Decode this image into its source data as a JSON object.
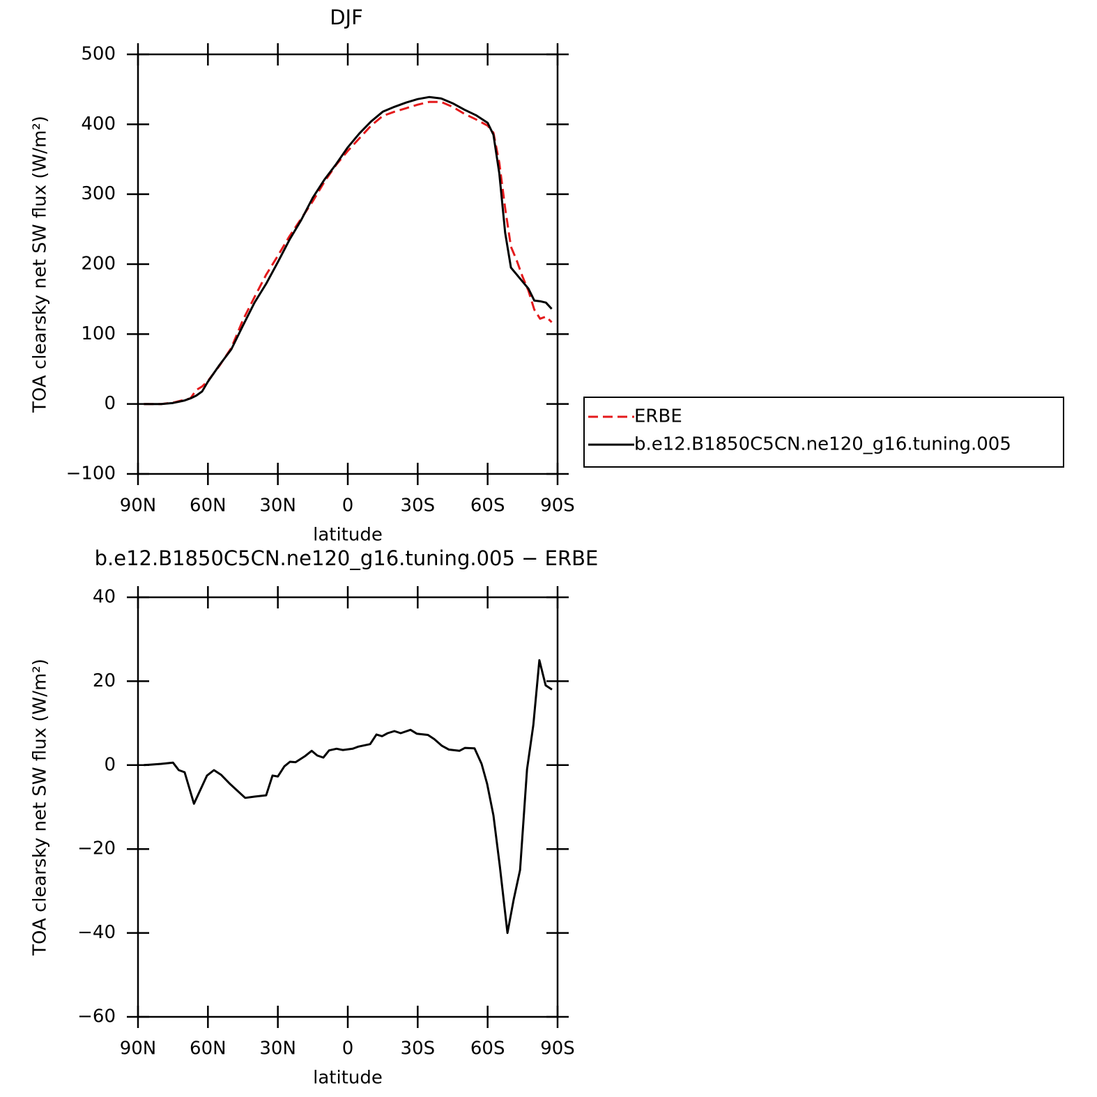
{
  "chart_data": [
    {
      "type": "line",
      "title": "DJF",
      "xlabel": "latitude",
      "ylabel": "TOA clearsky net SW flux (W/m²)",
      "xlim": [
        90,
        -90
      ],
      "xticks": [
        {
          "value": 90,
          "label": "90N"
        },
        {
          "value": 60,
          "label": "60N"
        },
        {
          "value": 30,
          "label": "30N"
        },
        0,
        {
          "value": -30,
          "label": "30S"
        },
        {
          "value": -60,
          "label": "60S"
        },
        {
          "value": -90,
          "label": "90S"
        }
      ],
      "ylim": [
        -100,
        500
      ],
      "yticks": [
        {
          "value": -100,
          "label": "−100"
        },
        0,
        100,
        200,
        300,
        400,
        500
      ],
      "legend": "right",
      "series": [
        {
          "name": "ERBE",
          "color": "#e41a1c",
          "dash": true,
          "x": [
            87.5,
            80,
            75,
            70,
            67.5,
            65,
            62.5,
            60,
            55,
            50,
            45,
            40,
            35,
            30,
            25,
            20,
            15,
            10,
            5,
            0,
            -5,
            -10,
            -15,
            -20,
            -25,
            -30,
            -35,
            -40,
            -45,
            -50,
            -55,
            -60,
            -62.5,
            -65,
            -67.5,
            -70,
            -72.5,
            -75,
            -77.5,
            -80,
            -82.5,
            -85,
            -87.5
          ],
          "values": [
            0,
            0,
            2,
            6,
            8,
            20,
            25,
            33,
            55,
            80,
            120,
            153,
            185,
            212,
            240,
            265,
            290,
            318,
            342,
            362,
            380,
            398,
            412,
            418,
            423,
            428,
            432,
            432,
            425,
            415,
            407,
            398,
            388,
            345,
            280,
            225,
            205,
            182,
            162,
            135,
            122,
            125,
            117
          ]
        },
        {
          "name": "b.e12.B1850C5CN.ne120_g16.tuning.005",
          "color": "#000000",
          "dash": false,
          "x": [
            87.5,
            80,
            75,
            70,
            67.5,
            65,
            62.5,
            60,
            55,
            50,
            45,
            40,
            35,
            30,
            25,
            20,
            15,
            10,
            5,
            0,
            -5,
            -10,
            -15,
            -20,
            -25,
            -30,
            -35,
            -40,
            -45,
            -50,
            -55,
            -60,
            -62.5,
            -65,
            -67.5,
            -70,
            -72.5,
            -75,
            -77.5,
            -80,
            -82.5,
            -85,
            -87.5
          ],
          "values": [
            0,
            0,
            1.5,
            5,
            8,
            12,
            18,
            32,
            56,
            78,
            112,
            145,
            172,
            203,
            235,
            263,
            295,
            321,
            343,
            367,
            387,
            404,
            418,
            425,
            431,
            436,
            439,
            437,
            430,
            421,
            413,
            402,
            385,
            330,
            245,
            195,
            185,
            175,
            165,
            148,
            147,
            145,
            136
          ]
        }
      ]
    },
    {
      "type": "line",
      "title": "b.e12.B1850C5CN.ne120_g16.tuning.005 − ERBE",
      "xlabel": "latitude",
      "ylabel": "TOA clearsky net SW flux (W/m²)",
      "xlim": [
        90,
        -90
      ],
      "xticks": [
        {
          "value": 90,
          "label": "90N"
        },
        {
          "value": 60,
          "label": "60N"
        },
        {
          "value": 30,
          "label": "30N"
        },
        0,
        {
          "value": -30,
          "label": "30S"
        },
        {
          "value": -60,
          "label": "60S"
        },
        {
          "value": -90,
          "label": "90S"
        }
      ],
      "ylim": [
        -60,
        40
      ],
      "yticks": [
        {
          "value": -60,
          "label": "−60"
        },
        {
          "value": -40,
          "label": "−40"
        },
        {
          "value": -20,
          "label": "−20"
        },
        0,
        20,
        40
      ],
      "color": "#000000",
      "x": [
        87.5,
        85,
        80,
        75,
        72.5,
        70,
        66,
        62.5,
        60.4,
        57.4,
        54.4,
        50.5,
        44,
        40,
        35,
        32.3,
        30,
        27.2,
        24.8,
        22.4,
        18.2,
        15.5,
        13.1,
        10.5,
        8,
        4.8,
        2.1,
        -2.1,
        -4.5,
        -9.6,
        -12.3,
        -14.7,
        -17.1,
        -20,
        -22.7,
        -26.9,
        -29.6,
        -34.4,
        -37.1,
        -40.4,
        -43.4,
        -47.9,
        -50.3,
        -54.4,
        -57.4,
        -59.8,
        -62.5,
        -65.2,
        -68.5,
        -71.2,
        -73.9,
        -76.9,
        -79.6,
        -82.2,
        -84.9,
        -87.6
      ],
      "values": [
        0,
        0.1,
        0.3,
        0.6,
        -1.2,
        -1.7,
        -9.2,
        -5,
        -2.5,
        -1.2,
        -2.3,
        -4.5,
        -7.8,
        -7.5,
        -7.2,
        -2.5,
        -2.7,
        -0.3,
        0.8,
        0.7,
        2.2,
        3.4,
        2.3,
        1.8,
        3.5,
        3.9,
        3.6,
        3.9,
        4.4,
        5,
        7.3,
        6.9,
        7.6,
        8.1,
        7.6,
        8.4,
        7.5,
        7.2,
        6.2,
        4.6,
        3.7,
        3.4,
        4.1,
        4,
        0.3,
        -4.5,
        -12,
        -24,
        -40,
        -32,
        -25,
        -1,
        9.5,
        25,
        19,
        18
      ]
    }
  ]
}
